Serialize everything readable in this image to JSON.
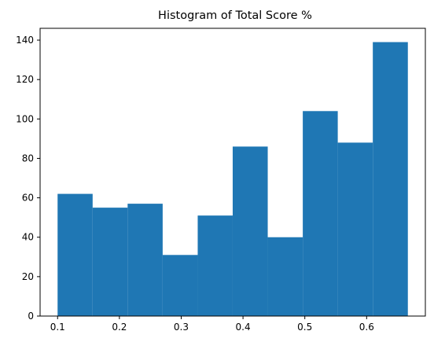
{
  "chart_data": {
    "type": "bar",
    "title": "Histogram of Total Score %",
    "xlabel": "",
    "ylabel": "",
    "bins": [
      {
        "x0": 0.1,
        "x1": 0.1567,
        "count": 62
      },
      {
        "x0": 0.1567,
        "x1": 0.2133,
        "count": 55
      },
      {
        "x0": 0.2133,
        "x1": 0.27,
        "count": 57
      },
      {
        "x0": 0.27,
        "x1": 0.3267,
        "count": 31
      },
      {
        "x0": 0.3267,
        "x1": 0.3833,
        "count": 51
      },
      {
        "x0": 0.3833,
        "x1": 0.44,
        "count": 86
      },
      {
        "x0": 0.44,
        "x1": 0.4967,
        "count": 40
      },
      {
        "x0": 0.4967,
        "x1": 0.5533,
        "count": 104
      },
      {
        "x0": 0.5533,
        "x1": 0.61,
        "count": 88
      },
      {
        "x0": 0.61,
        "x1": 0.6667,
        "count": 139
      }
    ],
    "xlim": [
      0.0717,
      0.695
    ],
    "ylim": [
      0,
      146
    ],
    "x_ticks": [
      {
        "value": 0.1,
        "label": "0.1"
      },
      {
        "value": 0.2,
        "label": "0.2"
      },
      {
        "value": 0.3,
        "label": "0.3"
      },
      {
        "value": 0.4,
        "label": "0.4"
      },
      {
        "value": 0.5,
        "label": "0.5"
      },
      {
        "value": 0.6,
        "label": "0.6"
      }
    ],
    "y_ticks": [
      {
        "value": 0,
        "label": "0"
      },
      {
        "value": 20,
        "label": "20"
      },
      {
        "value": 40,
        "label": "40"
      },
      {
        "value": 60,
        "label": "60"
      },
      {
        "value": 80,
        "label": "80"
      },
      {
        "value": 100,
        "label": "100"
      },
      {
        "value": 120,
        "label": "120"
      },
      {
        "value": 140,
        "label": "140"
      }
    ],
    "bar_color": "#1f77b4",
    "grid": false,
    "legend": "none"
  }
}
